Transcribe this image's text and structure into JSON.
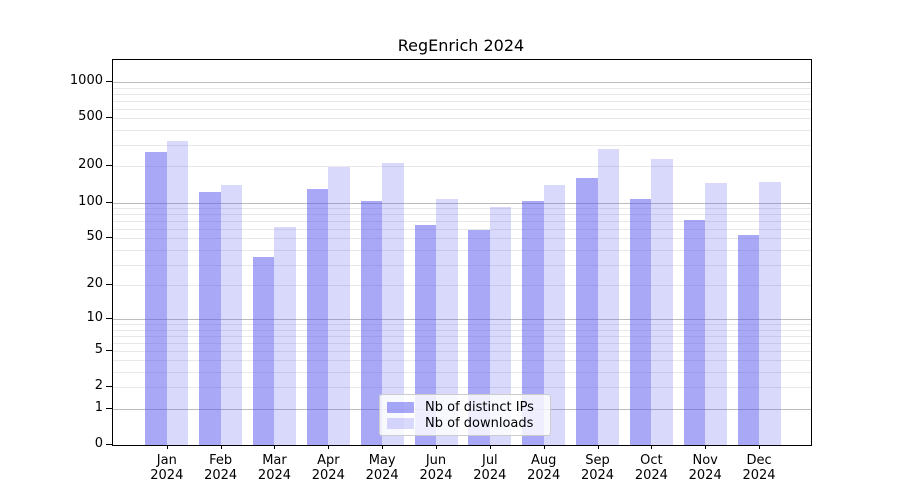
{
  "title": "RegEnrich 2024",
  "chart_data": {
    "type": "bar",
    "title": "RegEnrich 2024",
    "categories": [
      "Jan",
      "Feb",
      "Mar",
      "Apr",
      "May",
      "Jun",
      "Jul",
      "Aug",
      "Sep",
      "Oct",
      "Nov",
      "Dec"
    ],
    "category_year": "2024",
    "series": [
      {
        "name": "Nb of distinct IPs",
        "color": "rgba(85,85,240,0.51)",
        "values": [
          265,
          122,
          35,
          130,
          103,
          65,
          59,
          104,
          160,
          107,
          72,
          53
        ]
      },
      {
        "name": "Nb of downloads",
        "color": "rgba(85,85,240,0.225)",
        "values": [
          325,
          140,
          62,
          199,
          213,
          107,
          92,
          140,
          280,
          230,
          146,
          148
        ]
      }
    ],
    "xlabel": "",
    "ylabel": "",
    "yscale": "log1p",
    "ylim": [
      0,
      1520
    ],
    "yticks": [
      0,
      1,
      2,
      5,
      10,
      20,
      50,
      100,
      200,
      500,
      1000
    ],
    "grid": {
      "major": [
        1,
        10,
        100,
        1000
      ],
      "minor": [
        2,
        3,
        4,
        5,
        6,
        7,
        8,
        9,
        20,
        30,
        40,
        50,
        60,
        70,
        80,
        90,
        200,
        300,
        400,
        500,
        600,
        700,
        800,
        900
      ],
      "major_color": "#bcbcbc",
      "minor_color": "#e8e8e8"
    },
    "legend_position": "lower center"
  }
}
